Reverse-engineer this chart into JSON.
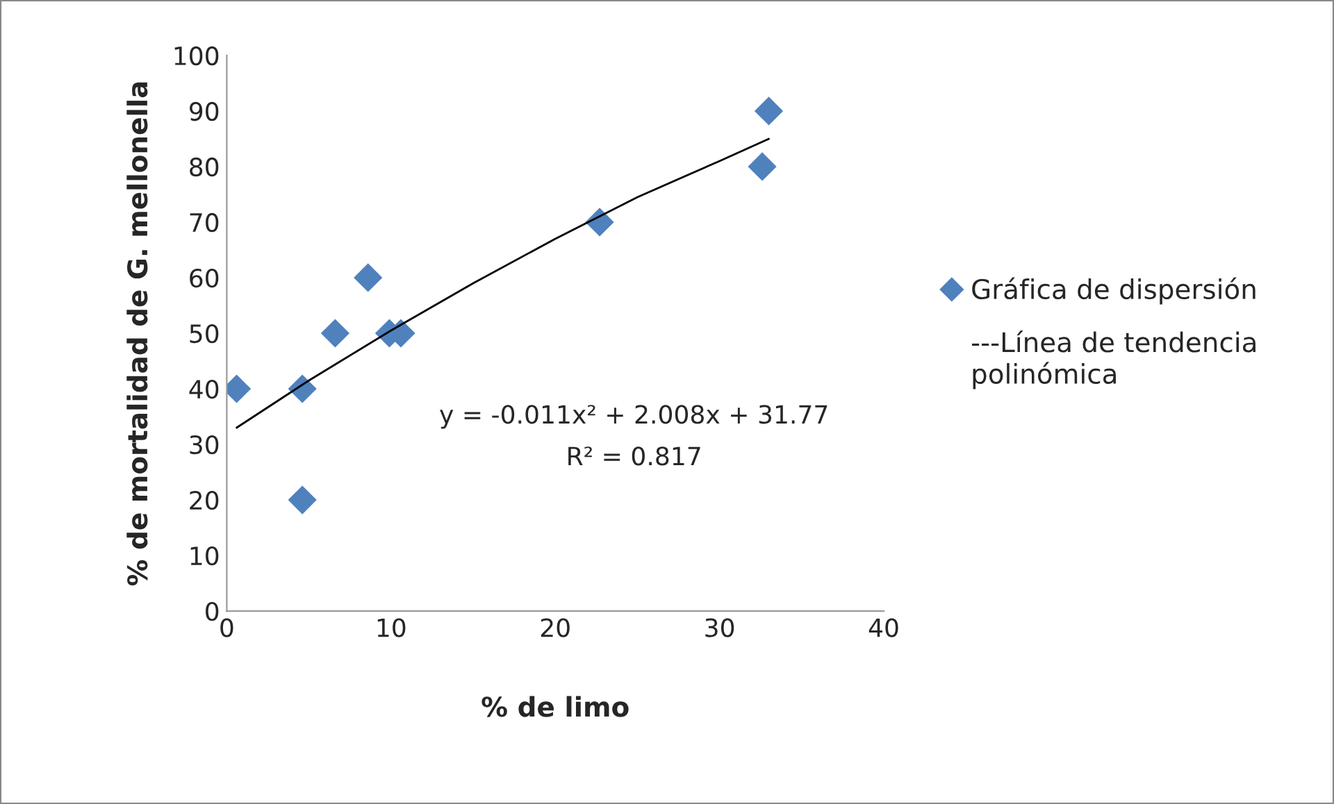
{
  "chart_data": {
    "type": "scatter",
    "xlabel": "% de limo",
    "ylabel": "% de mortalidad de G. mellonella",
    "series": [
      {
        "name": "Gráfica de dispersión",
        "color": "#4f81bd",
        "marker": "diamond",
        "x": [
          0.6,
          4.6,
          4.6,
          6.6,
          8.6,
          9.9,
          10.6,
          22.7,
          32.6,
          33.0
        ],
        "values": [
          40,
          40,
          20,
          50,
          60,
          50,
          50,
          70,
          80,
          90
        ]
      },
      {
        "name": "---Línea de tendencia\npolinómica",
        "type": "line",
        "color": "#000000",
        "marker": "none",
        "x": [
          0.6,
          5,
          10,
          15,
          20,
          25,
          30,
          33
        ],
        "values": [
          33,
          41.5,
          50.5,
          59,
          67,
          74.5,
          81,
          85
        ]
      }
    ],
    "annotations": [
      "y = -0.011x² + 2.008x + 31.77",
      "R² = 0.817"
    ],
    "xlim": [
      0,
      40
    ],
    "xticks": [
      0,
      10,
      20,
      30,
      40
    ],
    "ylim": [
      0,
      100
    ],
    "yticks": [
      0,
      10,
      20,
      30,
      40,
      50,
      60,
      70,
      80,
      90,
      100
    ],
    "grid": false,
    "legend": "right"
  }
}
